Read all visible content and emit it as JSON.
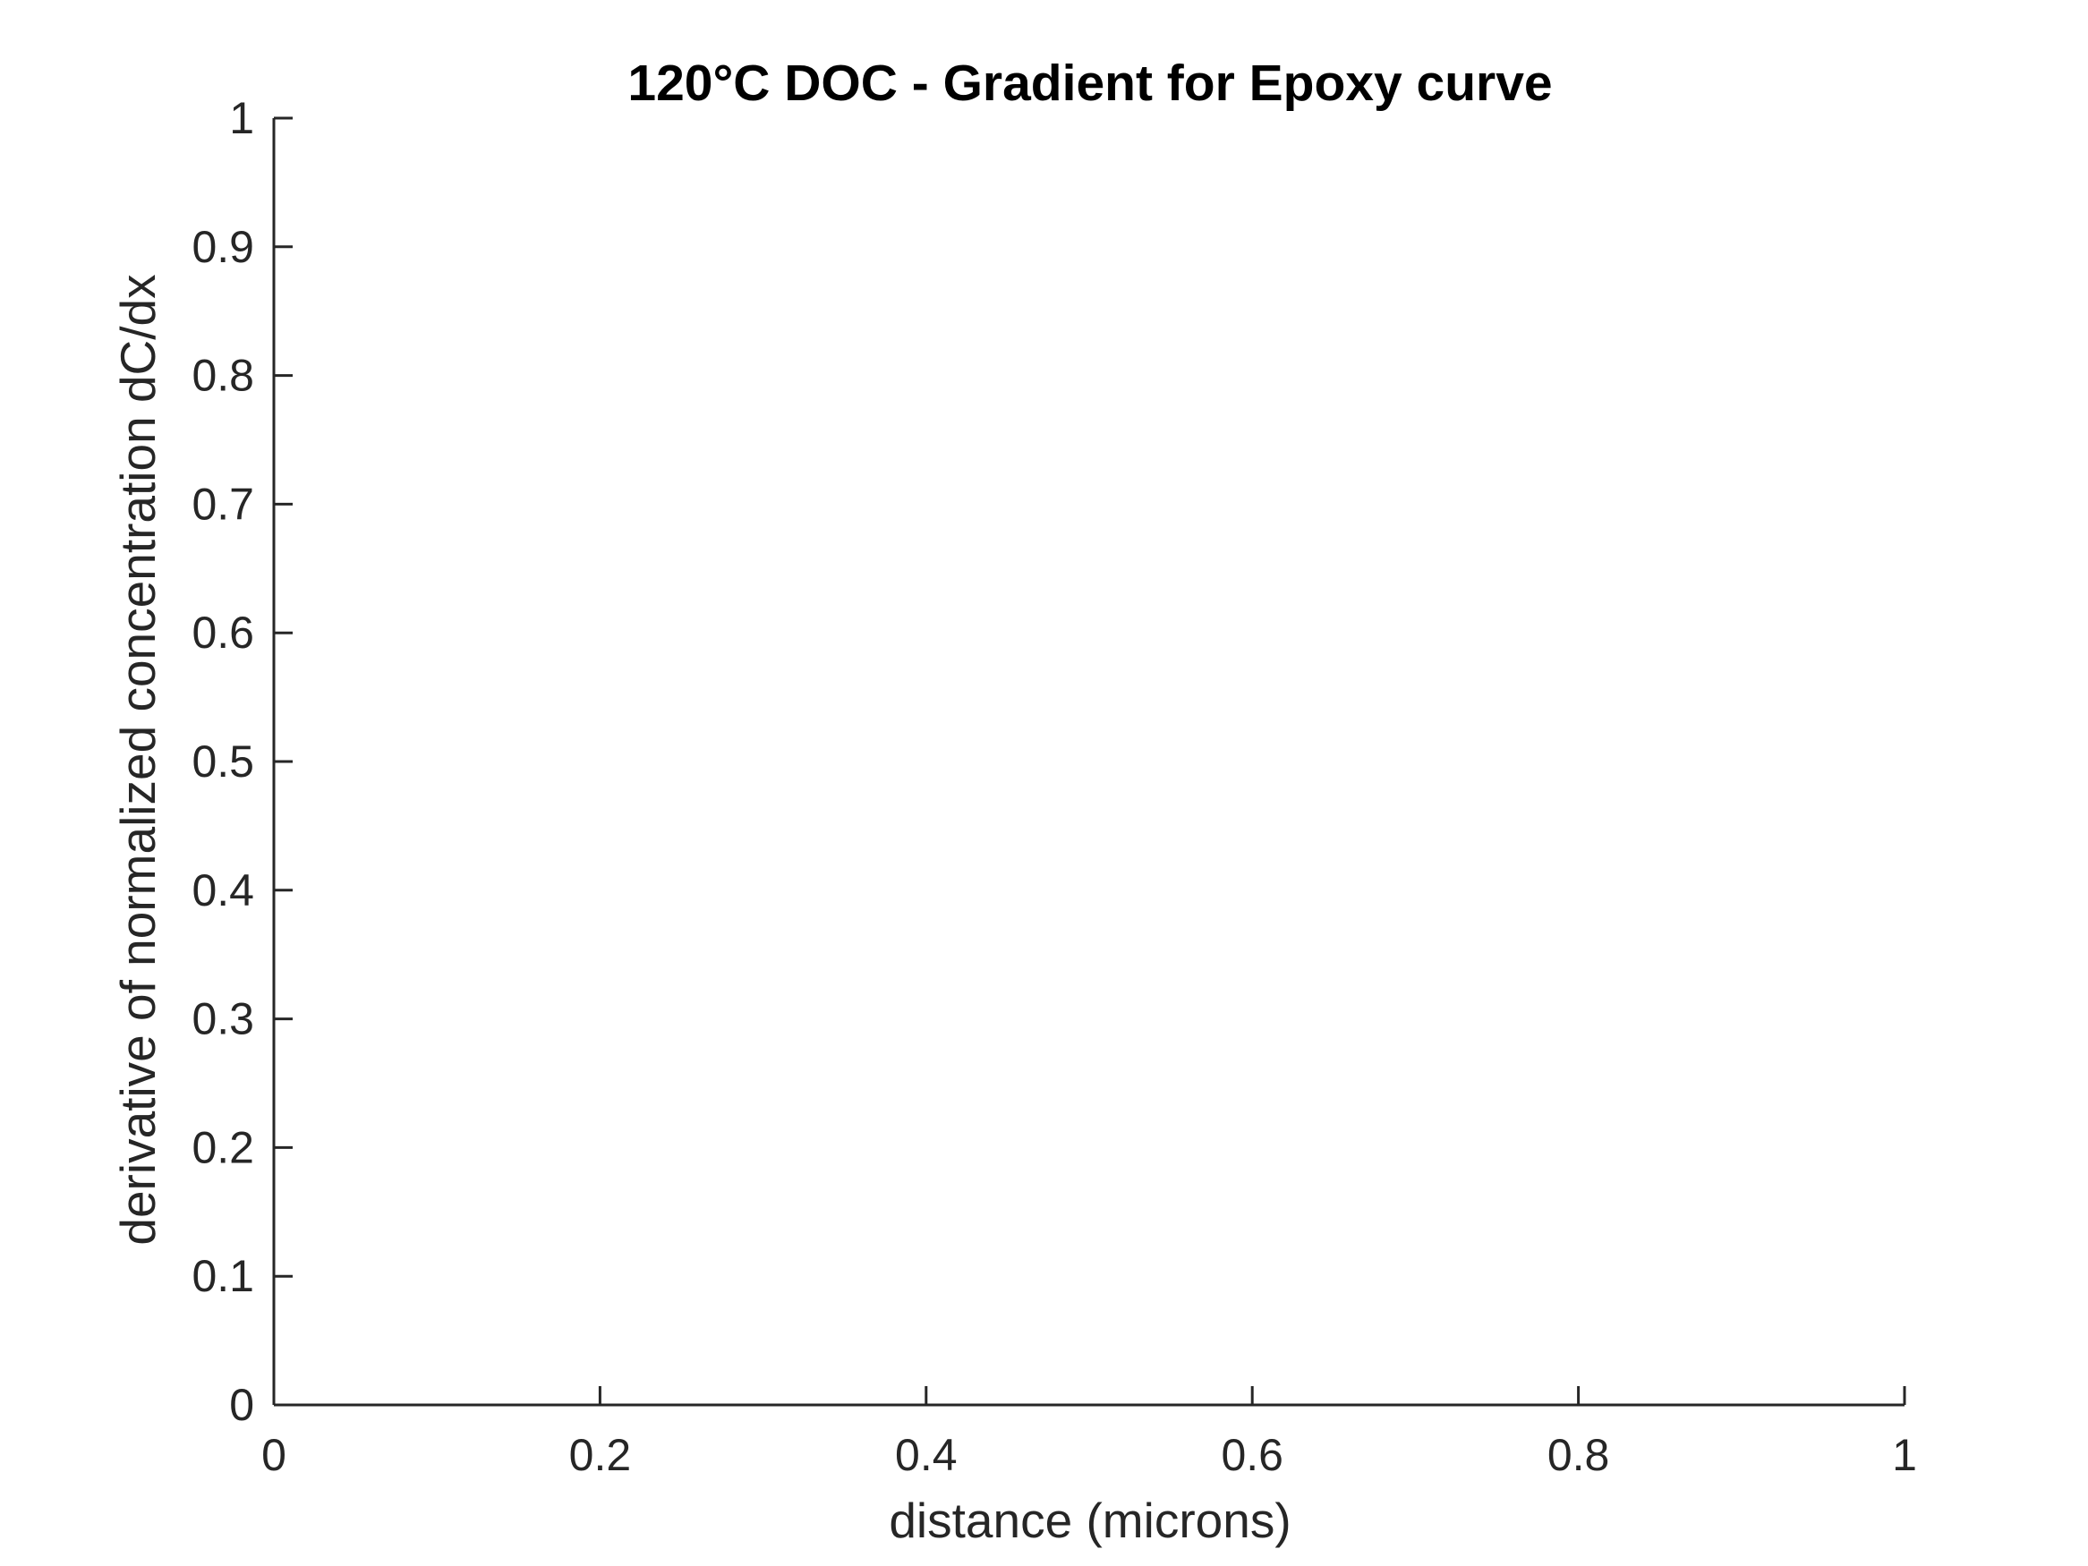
{
  "chart_data": {
    "type": "line",
    "title": "120°C DOC - Gradient for Epoxy curve",
    "xlabel": "distance (microns)",
    "ylabel": "derivative of normalized concentration dC/dx",
    "xlim": [
      0,
      1
    ],
    "ylim": [
      0,
      1
    ],
    "x_ticks": [
      "0",
      "0.2",
      "0.4",
      "0.6",
      "0.8",
      "1"
    ],
    "y_ticks": [
      "0",
      "0.1",
      "0.2",
      "0.3",
      "0.4",
      "0.5",
      "0.6",
      "0.7",
      "0.8",
      "0.9",
      "1"
    ],
    "series": [],
    "grid": false,
    "legend": "none",
    "colors": {
      "axis": "#262626",
      "title": "#000000",
      "background": "#ffffff"
    }
  }
}
